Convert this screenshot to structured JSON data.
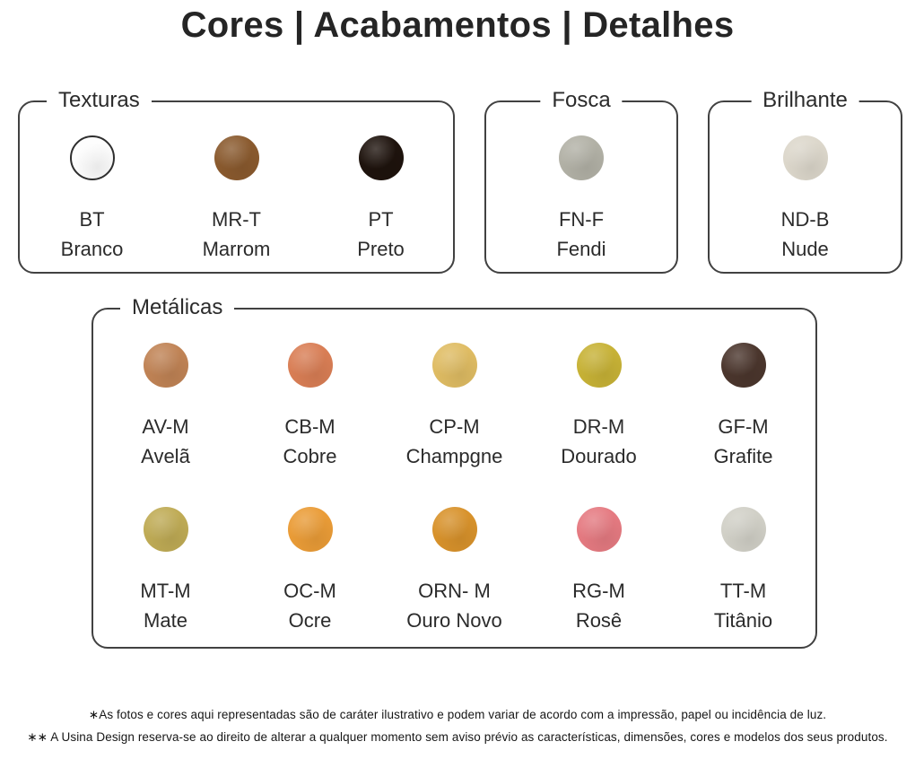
{
  "title": "Cores | Acabamentos | Detalhes",
  "sections": [
    {
      "label": "Texturas",
      "swatches": [
        {
          "code": "BT",
          "name": "Branco",
          "color": "#fdfdfd",
          "outline": true
        },
        {
          "code": "MR-T",
          "name": "Marrom",
          "color": "#8a5a2e"
        },
        {
          "code": "PT",
          "name": "Preto",
          "color": "#1e130d"
        }
      ]
    },
    {
      "label": "Fosca",
      "swatches": [
        {
          "code": "FN-F",
          "name": "Fendi",
          "color": "#b2b1a6"
        }
      ]
    },
    {
      "label": "Brilhante",
      "swatches": [
        {
          "code": "ND-B",
          "name": "Nude",
          "color": "#dcd7cb"
        }
      ]
    },
    {
      "label": "Metálicas",
      "swatches": [
        {
          "code": "AV-M",
          "name": "Avelã",
          "color": "#c08355"
        },
        {
          "code": "CB-M",
          "name": "Cobre",
          "color": "#d97e55"
        },
        {
          "code": "CP-M",
          "name": "Champgne",
          "color": "#dfbc63"
        },
        {
          "code": "DR-M",
          "name": "Dourado",
          "color": "#c7b236"
        },
        {
          "code": "GF-M",
          "name": "Grafite",
          "color": "#4b362d"
        },
        {
          "code": "MT-M",
          "name": "Mate",
          "color": "#bfab55"
        },
        {
          "code": "OC-M",
          "name": "Ocre",
          "color": "#ea9c37"
        },
        {
          "code": "ORN- M",
          "name": "Ouro Novo",
          "color": "#d8922b"
        },
        {
          "code": "RG-M",
          "name": "Rosê",
          "color": "#e57a81"
        },
        {
          "code": "TT-M",
          "name": "Titânio",
          "color": "#d1d0c7"
        }
      ]
    }
  ],
  "footnotes": [
    "∗As fotos e cores aqui representadas são de caráter ilustrativo e podem variar de acordo com a impressão, papel ou incidência de luz.",
    "∗∗ A Usina Design reserva-se ao direito de alterar a qualquer momento sem  aviso prévio  as características, dimensões, cores e modelos dos seus produtos."
  ]
}
